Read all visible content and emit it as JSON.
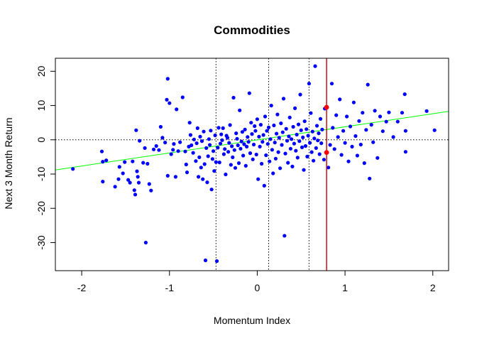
{
  "chart_data": {
    "type": "scatter",
    "title": "Commodities",
    "xlabel": "Momentum Index",
    "ylabel": "Next 3 Month Return",
    "xlim": [
      -2.3,
      2.18
    ],
    "ylim": [
      -38.2,
      23.8
    ],
    "x_ticks": [
      "-2",
      "-1",
      "0",
      "1",
      "2"
    ],
    "y_ticks": [
      "-30",
      "-20",
      "-10",
      "0",
      "10",
      "20"
    ],
    "grid": false,
    "point_color": "#0000ff",
    "highlight_color": "#ff0000",
    "fit_line": {
      "color": "#00ff00",
      "x": [
        -2.3,
        2.18
      ],
      "y": [
        -8.8,
        8.3
      ]
    },
    "reference_lines": {
      "horizontal_dotted": [
        0
      ],
      "vertical_dotted": [
        -0.47,
        0.13,
        0.59
      ],
      "vertical_solid": {
        "x": 0.79,
        "color": "#c00000"
      }
    },
    "highlight_points": [
      {
        "x": 0.79,
        "y": 9.5
      },
      {
        "x": 0.79,
        "y": -3.7
      }
    ],
    "points": [
      [
        -2.1,
        -8.5
      ],
      [
        -1.77,
        -3.4
      ],
      [
        -1.76,
        -12.2
      ],
      [
        -1.76,
        -6.4
      ],
      [
        -1.72,
        -6.0
      ],
      [
        -1.62,
        -13.7
      ],
      [
        -1.58,
        -11.5
      ],
      [
        -1.57,
        -7.9
      ],
      [
        -1.53,
        -9.8
      ],
      [
        -1.51,
        -6.5
      ],
      [
        -1.47,
        -11.7
      ],
      [
        -1.45,
        -12.5
      ],
      [
        -1.42,
        -6.3
      ],
      [
        -1.4,
        -14.7
      ],
      [
        -1.39,
        -16.0
      ],
      [
        -1.38,
        2.8
      ],
      [
        -1.37,
        -9.2
      ],
      [
        -1.36,
        -10.8
      ],
      [
        -1.35,
        -12.5
      ],
      [
        -1.34,
        -0.3
      ],
      [
        -1.3,
        -6.7
      ],
      [
        -1.28,
        -2.4
      ],
      [
        -1.27,
        -30.0
      ],
      [
        -1.25,
        -7.0
      ],
      [
        -1.23,
        -12.9
      ],
      [
        -1.21,
        -14.8
      ],
      [
        -1.18,
        -2.8
      ],
      [
        -1.15,
        -1.8
      ],
      [
        -1.12,
        -3.0
      ],
      [
        -1.1,
        3.8
      ],
      [
        -1.08,
        0.6
      ],
      [
        -1.05,
        -0.8
      ],
      [
        -1.03,
        11.7
      ],
      [
        -1.02,
        -10.5
      ],
      [
        -1.02,
        17.8
      ],
      [
        -1.0,
        10.7
      ],
      [
        -0.98,
        -4.2
      ],
      [
        -0.96,
        -2.9
      ],
      [
        -0.95,
        -1.2
      ],
      [
        -0.93,
        -10.8
      ],
      [
        -0.92,
        8.9
      ],
      [
        -0.9,
        -3.3
      ],
      [
        -0.88,
        -0.7
      ],
      [
        -0.85,
        12.4
      ],
      [
        -0.82,
        -3.4
      ],
      [
        -0.81,
        -7.2
      ],
      [
        -0.8,
        -9.5
      ],
      [
        -0.78,
        -2.0
      ],
      [
        -0.77,
        5.0
      ],
      [
        -0.76,
        1.4
      ],
      [
        -0.75,
        -1.6
      ],
      [
        -0.73,
        -3.8
      ],
      [
        -0.72,
        0.1
      ],
      [
        -0.7,
        -6.2
      ],
      [
        -0.69,
        -1.0
      ],
      [
        -0.68,
        3.4
      ],
      [
        -0.67,
        -10.8
      ],
      [
        -0.66,
        -5.1
      ],
      [
        -0.65,
        0.9
      ],
      [
        -0.64,
        -8.1
      ],
      [
        -0.63,
        -0.4
      ],
      [
        -0.62,
        -11.5
      ],
      [
        -0.61,
        2.4
      ],
      [
        -0.6,
        -7.1
      ],
      [
        -0.59,
        -35.2
      ],
      [
        -0.58,
        -2.4
      ],
      [
        -0.57,
        -12.4
      ],
      [
        -0.56,
        -4.8
      ],
      [
        -0.55,
        0.2
      ],
      [
        -0.54,
        -1.5
      ],
      [
        -0.53,
        2.7
      ],
      [
        -0.52,
        -14.5
      ],
      [
        -0.51,
        -5.6
      ],
      [
        -0.5,
        -3.3
      ],
      [
        -0.49,
        -9.1
      ],
      [
        -0.48,
        1.3
      ],
      [
        -0.47,
        -6.5
      ],
      [
        -0.46,
        -35.4
      ],
      [
        -0.45,
        -2.3
      ],
      [
        -0.44,
        3.5
      ],
      [
        -0.43,
        -6.6
      ],
      [
        -0.42,
        -1.1
      ],
      [
        -0.41,
        1.6
      ],
      [
        -0.4,
        -0.1
      ],
      [
        -0.39,
        3.4
      ],
      [
        -0.38,
        -4.2
      ],
      [
        -0.37,
        -2.7
      ],
      [
        -0.36,
        -10.1
      ],
      [
        -0.35,
        1.2
      ],
      [
        -0.34,
        0.6
      ],
      [
        -0.33,
        -3.5
      ],
      [
        -0.32,
        -0.9
      ],
      [
        -0.31,
        4.3
      ],
      [
        -0.3,
        -7.3
      ],
      [
        -0.29,
        -1.9
      ],
      [
        -0.28,
        -5.1
      ],
      [
        -0.27,
        12.3
      ],
      [
        -0.26,
        -3.0
      ],
      [
        -0.25,
        -8.2
      ],
      [
        -0.24,
        1.9
      ],
      [
        -0.23,
        0.3
      ],
      [
        -0.22,
        -1.6
      ],
      [
        -0.21,
        -6.8
      ],
      [
        -0.2,
        8.6
      ],
      [
        -0.19,
        -2.6
      ],
      [
        -0.18,
        -0.5
      ],
      [
        -0.17,
        2.3
      ],
      [
        -0.16,
        -4.6
      ],
      [
        -0.15,
        -1.3
      ],
      [
        -0.14,
        3.0
      ],
      [
        -0.13,
        -7.6
      ],
      [
        -0.12,
        -2.0
      ],
      [
        -0.11,
        0.8
      ],
      [
        -0.1,
        -0.6
      ],
      [
        -0.09,
        13.6
      ],
      [
        -0.08,
        -3.9
      ],
      [
        -0.07,
        5.0
      ],
      [
        -0.06,
        1.7
      ],
      [
        -0.05,
        -5.7
      ],
      [
        -0.04,
        -1.4
      ],
      [
        -0.03,
        4.0
      ],
      [
        -0.02,
        2.6
      ],
      [
        -0.01,
        -4.3
      ],
      [
        0.0,
        6.0
      ],
      [
        0.01,
        -11.5
      ],
      [
        0.02,
        0.9
      ],
      [
        0.03,
        -2.0
      ],
      [
        0.04,
        4.4
      ],
      [
        0.05,
        -7.0
      ],
      [
        0.06,
        -0.6
      ],
      [
        0.07,
        1.4
      ],
      [
        0.08,
        -13.4
      ],
      [
        0.09,
        6.8
      ],
      [
        0.1,
        -4.5
      ],
      [
        0.11,
        2.6
      ],
      [
        0.12,
        -1.2
      ],
      [
        0.13,
        3.6
      ],
      [
        0.14,
        -6.3
      ],
      [
        0.15,
        0.2
      ],
      [
        0.16,
        10.0
      ],
      [
        0.17,
        -2.9
      ],
      [
        0.18,
        -9.8
      ],
      [
        0.19,
        4.2
      ],
      [
        0.2,
        -0.8
      ],
      [
        0.21,
        -5.5
      ],
      [
        0.22,
        1.8
      ],
      [
        0.23,
        7.4
      ],
      [
        0.24,
        -3.6
      ],
      [
        0.25,
        0.6
      ],
      [
        0.26,
        -8.3
      ],
      [
        0.27,
        4.8
      ],
      [
        0.28,
        -1.5
      ],
      [
        0.29,
        2.2
      ],
      [
        0.3,
        12.0
      ],
      [
        0.31,
        -28.0
      ],
      [
        0.32,
        -4.0
      ],
      [
        0.33,
        3.2
      ],
      [
        0.34,
        -0.3
      ],
      [
        0.35,
        -6.7
      ],
      [
        0.36,
        1.0
      ],
      [
        0.37,
        6.5
      ],
      [
        0.38,
        -2.6
      ],
      [
        0.39,
        0.2
      ],
      [
        0.4,
        -7.8
      ],
      [
        0.41,
        3.8
      ],
      [
        0.42,
        -1.1
      ],
      [
        0.43,
        9.2
      ],
      [
        0.44,
        -3.2
      ],
      [
        0.45,
        1.5
      ],
      [
        0.46,
        -5.2
      ],
      [
        0.47,
        4.5
      ],
      [
        0.48,
        -0.4
      ],
      [
        0.49,
        13.2
      ],
      [
        0.5,
        2.8
      ],
      [
        0.51,
        -2.2
      ],
      [
        0.52,
        0.7
      ],
      [
        0.53,
        -8.8
      ],
      [
        0.54,
        5.4
      ],
      [
        0.55,
        -1.8
      ],
      [
        0.56,
        3.1
      ],
      [
        0.57,
        -4.9
      ],
      [
        0.58,
        1.2
      ],
      [
        0.59,
        16.4
      ],
      [
        0.6,
        -0.9
      ],
      [
        0.61,
        7.8
      ],
      [
        0.62,
        -3.6
      ],
      [
        0.63,
        2.4
      ],
      [
        0.64,
        -6.1
      ],
      [
        0.65,
        0.4
      ],
      [
        0.66,
        21.5
      ],
      [
        0.67,
        -2.4
      ],
      [
        0.68,
        4.1
      ],
      [
        0.69,
        -0.2
      ],
      [
        0.7,
        1.9
      ],
      [
        0.71,
        -4.2
      ],
      [
        0.72,
        6.1
      ],
      [
        0.73,
        -1.0
      ],
      [
        0.74,
        3.0
      ],
      [
        0.76,
        -5.8
      ],
      [
        0.77,
        9.1
      ],
      [
        0.81,
        -8.1
      ],
      [
        0.83,
        -1.5
      ],
      [
        0.85,
        16.4
      ],
      [
        0.86,
        3.5
      ],
      [
        0.88,
        -2.7
      ],
      [
        0.9,
        7.2
      ],
      [
        0.92,
        0.8
      ],
      [
        0.94,
        11.8
      ],
      [
        0.96,
        -4.4
      ],
      [
        0.98,
        2.6
      ],
      [
        1.0,
        -0.9
      ],
      [
        1.02,
        6.8
      ],
      [
        1.04,
        -6.3
      ],
      [
        1.06,
        3.9
      ],
      [
        1.08,
        -2.0
      ],
      [
        1.1,
        10.9
      ],
      [
        1.12,
        1.1
      ],
      [
        1.14,
        -4.6
      ],
      [
        1.16,
        5.5
      ],
      [
        1.18,
        -1.4
      ],
      [
        1.2,
        7.9
      ],
      [
        1.22,
        -6.8
      ],
      [
        1.24,
        2.9
      ],
      [
        1.26,
        16.1
      ],
      [
        1.28,
        -11.3
      ],
      [
        1.3,
        4.4
      ],
      [
        1.32,
        -0.7
      ],
      [
        1.34,
        8.5
      ],
      [
        1.37,
        -5.3
      ],
      [
        1.4,
        6.8
      ],
      [
        1.43,
        2.5
      ],
      [
        1.47,
        5.3
      ],
      [
        1.5,
        8.0
      ],
      [
        1.55,
        0.8
      ],
      [
        1.6,
        5.3
      ],
      [
        1.65,
        7.9
      ],
      [
        1.68,
        13.3
      ],
      [
        1.69,
        -3.5
      ],
      [
        1.69,
        2.6
      ],
      [
        1.93,
        8.4
      ],
      [
        2.02,
        2.8
      ]
    ]
  }
}
